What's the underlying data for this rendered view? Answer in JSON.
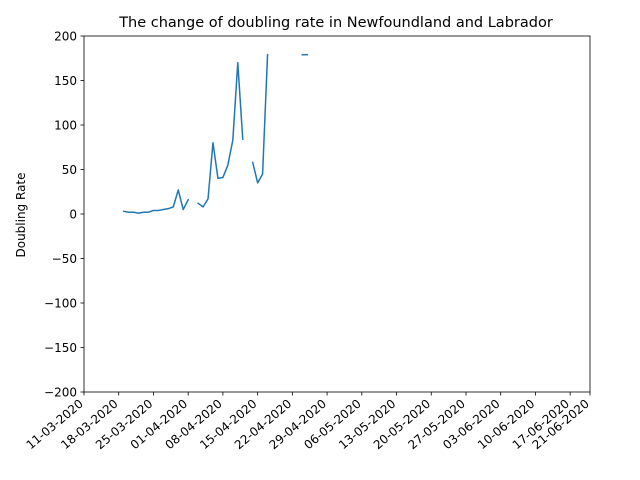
{
  "chart_data": {
    "type": "line",
    "title": "The change of doubling rate in Newfoundland and Labrador",
    "xlabel": "",
    "ylabel": "Doubling Rate",
    "ylim": [
      -200,
      200
    ],
    "yticks": [
      -200,
      -150,
      -100,
      -50,
      0,
      50,
      100,
      150,
      200
    ],
    "xlim": [
      "2020-03-11",
      "2020-06-21"
    ],
    "xticks": [
      "2020-03-11",
      "2020-03-18",
      "2020-03-25",
      "2020-04-01",
      "2020-04-08",
      "2020-04-15",
      "2020-04-22",
      "2020-04-29",
      "2020-05-06",
      "2020-05-13",
      "2020-05-20",
      "2020-05-27",
      "2020-06-03",
      "2020-06-10",
      "2020-06-17",
      "2020-06-21"
    ],
    "xtick_labels": [
      "11-03-2020",
      "18-03-2020",
      "25-03-2020",
      "01-04-2020",
      "08-04-2020",
      "15-04-2020",
      "22-04-2020",
      "29-04-2020",
      "06-05-2020",
      "13-05-2020",
      "20-05-2020",
      "27-05-2020",
      "03-06-2020",
      "10-06-2020",
      "17-06-2020",
      "21-06-2020"
    ],
    "grid": false,
    "line_color": "#1f77b4",
    "series": [
      {
        "name": "",
        "segments": [
          [
            {
              "x": "2020-03-19",
              "y": 3
            },
            {
              "x": "2020-03-20",
              "y": 2
            },
            {
              "x": "2020-03-21",
              "y": 2
            },
            {
              "x": "2020-03-22",
              "y": 1
            },
            {
              "x": "2020-03-23",
              "y": 2
            },
            {
              "x": "2020-03-24",
              "y": 2
            },
            {
              "x": "2020-03-25",
              "y": 4
            },
            {
              "x": "2020-03-26",
              "y": 4
            },
            {
              "x": "2020-03-27",
              "y": 5
            },
            {
              "x": "2020-03-28",
              "y": 6
            },
            {
              "x": "2020-03-29",
              "y": 8
            },
            {
              "x": "2020-03-30",
              "y": 27
            },
            {
              "x": "2020-03-31",
              "y": 5
            },
            {
              "x": "2020-04-01",
              "y": 16
            }
          ],
          [
            {
              "x": "2020-04-03",
              "y": 12
            },
            {
              "x": "2020-04-04",
              "y": 8
            },
            {
              "x": "2020-04-05",
              "y": 17
            },
            {
              "x": "2020-04-06",
              "y": 80
            },
            {
              "x": "2020-04-07",
              "y": 40
            },
            {
              "x": "2020-04-08",
              "y": 41
            },
            {
              "x": "2020-04-09",
              "y": 55
            },
            {
              "x": "2020-04-10",
              "y": 83
            },
            {
              "x": "2020-04-11",
              "y": 170
            },
            {
              "x": "2020-04-12",
              "y": 84
            }
          ],
          [
            {
              "x": "2020-04-14",
              "y": 58
            },
            {
              "x": "2020-04-15",
              "y": 35
            },
            {
              "x": "2020-04-16",
              "y": 45
            },
            {
              "x": "2020-04-17",
              "y": 179
            }
          ],
          [
            {
              "x": "2020-04-24",
              "y": 179
            },
            {
              "x": "2020-04-25",
              "y": 179
            }
          ]
        ]
      }
    ]
  }
}
